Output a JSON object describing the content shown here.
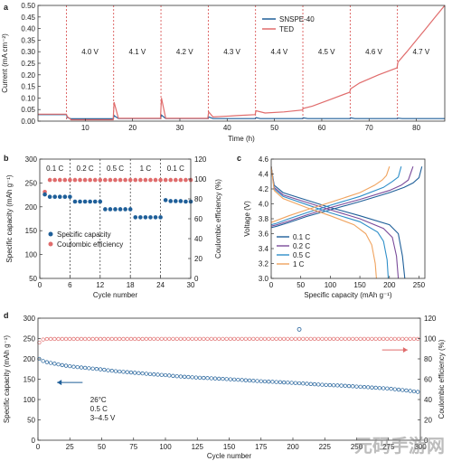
{
  "figure": {
    "watermark": "元码手游网"
  },
  "chart_data": [
    {
      "panel": "a",
      "type": "line",
      "xlabel": "Time (h)",
      "ylabel": "Current (mA cm⁻²)",
      "xlim": [
        0,
        86
      ],
      "ylim": [
        0.0,
        0.5
      ],
      "xticks": [
        "10",
        "20",
        "30",
        "40",
        "50",
        "60",
        "70",
        "80"
      ],
      "yticks": [
        "0.00",
        "0.05",
        "0.10",
        "0.15",
        "0.20",
        "0.25",
        "0.30",
        "0.35",
        "0.40",
        "0.45",
        "0.50"
      ],
      "voltage_steps": [
        "4.0 V",
        "4.1 V",
        "4.2 V",
        "4.3 V",
        "4.4 V",
        "4.5 V",
        "4.6 V",
        "4.7 V"
      ],
      "step_boundaries_h": [
        6,
        16,
        26,
        36,
        46,
        56,
        66,
        76
      ],
      "legend_position": "top-right",
      "series": [
        {
          "name": "SNSPE-40",
          "color": "#1f5f99",
          "x": [
            0,
            6,
            6.2,
            7,
            15.9,
            16.1,
            17,
            25.9,
            26.1,
            27,
            35.9,
            36.1,
            37,
            45.9,
            46.1,
            47,
            55.9,
            56.1,
            57,
            65.9,
            66.1,
            67,
            75.9,
            76.1,
            77,
            86
          ],
          "y": [
            0.028,
            0.028,
            0.016,
            0.01,
            0.01,
            0.024,
            0.011,
            0.011,
            0.026,
            0.011,
            0.011,
            0.018,
            0.011,
            0.011,
            0.015,
            0.011,
            0.011,
            0.014,
            0.011,
            0.011,
            0.014,
            0.011,
            0.011,
            0.013,
            0.011,
            0.011
          ]
        },
        {
          "name": "TED",
          "color": "#e06c6c",
          "x": [
            0,
            6,
            6.2,
            7,
            15.9,
            16.1,
            17,
            25.9,
            26.1,
            27,
            35.9,
            36.1,
            37,
            42,
            45.9,
            46.1,
            48,
            52,
            55.9,
            56.1,
            58,
            62,
            65.9,
            66.1,
            68,
            72,
            75.9,
            76.1,
            78,
            80,
            82,
            84,
            86
          ],
          "y": [
            0.03,
            0.03,
            0.02,
            0.006,
            0.006,
            0.082,
            0.012,
            0.012,
            0.1,
            0.012,
            0.012,
            0.04,
            0.018,
            0.024,
            0.028,
            0.045,
            0.035,
            0.04,
            0.048,
            0.055,
            0.065,
            0.095,
            0.125,
            0.14,
            0.165,
            0.2,
            0.23,
            0.255,
            0.3,
            0.35,
            0.4,
            0.45,
            0.5
          ]
        }
      ]
    },
    {
      "panel": "b",
      "type": "scatter",
      "xlabel": "Cycle number",
      "ylabel": "Specific capacity (mAh g⁻¹)",
      "y2label": "Coulombic efficiency (%)",
      "xlim": [
        0,
        30
      ],
      "ylim": [
        50,
        300
      ],
      "y2lim": [
        0,
        120
      ],
      "xticks": [
        "0",
        "6",
        "12",
        "18",
        "24",
        "30"
      ],
      "yticks": [
        "50",
        "100",
        "150",
        "200",
        "250",
        "300"
      ],
      "y2ticks": [
        "0",
        "20",
        "40",
        "60",
        "80",
        "100",
        "120"
      ],
      "rate_labels": [
        "0.1 C",
        "0.2 C",
        "0.5 C",
        "1 C",
        "0.1 C"
      ],
      "legend_position": "bottom-left",
      "series": [
        {
          "name": "Specific capacity",
          "color": "#1f5f99",
          "axis": "left",
          "x": [
            1,
            2,
            3,
            4,
            5,
            6,
            7,
            8,
            9,
            10,
            11,
            12,
            13,
            14,
            15,
            16,
            17,
            18,
            19,
            20,
            21,
            22,
            23,
            24,
            25,
            26,
            27,
            28,
            29,
            30
          ],
          "y": [
            226,
            221,
            221,
            221,
            221,
            221,
            211,
            211,
            211,
            211,
            211,
            211,
            195,
            195,
            195,
            195,
            195,
            195,
            178,
            178,
            178,
            178,
            178,
            178,
            214,
            212,
            212,
            212,
            211,
            211
          ]
        },
        {
          "name": "Coulombic efficiency",
          "color": "#e06c6c",
          "axis": "right",
          "x": [
            1,
            2,
            3,
            4,
            5,
            6,
            7,
            8,
            9,
            10,
            11,
            12,
            13,
            14,
            15,
            16,
            17,
            18,
            19,
            20,
            21,
            22,
            23,
            24,
            25,
            26,
            27,
            28,
            29,
            30
          ],
          "y": [
            87,
            99,
            99,
            99,
            99,
            99,
            99,
            99,
            99,
            99,
            99,
            99,
            99,
            99,
            99,
            99,
            99,
            99,
            99,
            99,
            99,
            99,
            99,
            99,
            99,
            99,
            99,
            99,
            99,
            99
          ]
        }
      ]
    },
    {
      "panel": "c",
      "type": "line",
      "xlabel": "Specific capacity (mAh g⁻¹)",
      "ylabel": "Voltage (V)",
      "xlim": [
        0,
        260
      ],
      "ylim": [
        3.0,
        4.6
      ],
      "xticks": [
        "0",
        "50",
        "100",
        "150",
        "200",
        "250"
      ],
      "yticks": [
        "3.0",
        "3.2",
        "3.4",
        "3.6",
        "3.8",
        "4.0",
        "4.2",
        "4.4",
        "4.6"
      ],
      "legend_position": "bottom-left",
      "series": [
        {
          "name": "0.1 C",
          "color": "#1f5f99",
          "charge": {
            "x": [
              0,
              10,
              30,
              60,
              100,
              150,
              200,
              225,
              240,
              250,
              255
            ],
            "y": [
              3.68,
              3.7,
              3.75,
              3.83,
              3.92,
              4.03,
              4.15,
              4.22,
              4.28,
              4.35,
              4.5
            ]
          },
          "discharge": {
            "x": [
              0,
              5,
              20,
              60,
              100,
              150,
              200,
              215,
              222,
              226
            ],
            "y": [
              4.5,
              4.25,
              4.15,
              4.05,
              3.95,
              3.84,
              3.72,
              3.6,
              3.3,
              3.0
            ]
          }
        },
        {
          "name": "0.2 C",
          "color": "#7a4b9a",
          "charge": {
            "x": [
              0,
              10,
              30,
              60,
              100,
              150,
              200,
              220,
              232,
              240
            ],
            "y": [
              3.7,
              3.72,
              3.77,
              3.85,
              3.95,
              4.06,
              4.18,
              4.25,
              4.32,
              4.5
            ]
          },
          "discharge": {
            "x": [
              0,
              5,
              20,
              60,
              100,
              150,
              190,
              205,
              212,
              215
            ],
            "y": [
              4.5,
              4.22,
              4.12,
              4.02,
              3.92,
              3.8,
              3.67,
              3.55,
              3.3,
              3.0
            ]
          }
        },
        {
          "name": "0.5 C",
          "color": "#2f8fc9",
          "charge": {
            "x": [
              0,
              10,
              30,
              60,
              100,
              150,
              190,
              205,
              215,
              220
            ],
            "y": [
              3.72,
              3.74,
              3.8,
              3.88,
              3.98,
              4.1,
              4.22,
              4.3,
              4.36,
              4.5
            ]
          },
          "discharge": {
            "x": [
              0,
              5,
              20,
              60,
              100,
              150,
              180,
              190,
              196,
              198
            ],
            "y": [
              4.5,
              4.2,
              4.1,
              3.99,
              3.88,
              3.76,
              3.62,
              3.5,
              3.25,
              3.0
            ]
          }
        },
        {
          "name": "1 C",
          "color": "#f0a35e",
          "charge": {
            "x": [
              0,
              10,
              30,
              60,
              100,
              150,
              175,
              188,
              195,
              200
            ],
            "y": [
              3.75,
              3.78,
              3.84,
              3.92,
              4.02,
              4.15,
              4.25,
              4.32,
              4.38,
              4.5
            ]
          },
          "discharge": {
            "x": [
              0,
              5,
              20,
              60,
              100,
              140,
              160,
              170,
              176,
              178
            ],
            "y": [
              4.5,
              4.18,
              4.07,
              3.95,
              3.84,
              3.72,
              3.6,
              3.45,
              3.2,
              3.0
            ]
          }
        }
      ]
    },
    {
      "panel": "d",
      "type": "scatter",
      "xlabel": "Cycle number",
      "ylabel": "Specific capacity (mAh g⁻¹)",
      "y2label": "Coulombic efficiency (%)",
      "xlim": [
        0,
        300
      ],
      "ylim": [
        0,
        300
      ],
      "y2lim": [
        0,
        120
      ],
      "xticks": [
        "0",
        "25",
        "50",
        "75",
        "100",
        "125",
        "150",
        "175",
        "200",
        "225",
        "250",
        "275",
        "300"
      ],
      "yticks": [
        "0",
        "50",
        "100",
        "150",
        "200",
        "250",
        "300"
      ],
      "y2ticks": [
        "0",
        "20",
        "40",
        "60",
        "80",
        "100",
        "120"
      ],
      "conditions": [
        "26°C",
        "0.5 C",
        "3–4.5 V"
      ],
      "series": [
        {
          "name": "Specific capacity",
          "color": "#1f5f99",
          "axis": "left",
          "x": [
            1,
            5,
            10,
            20,
            30,
            40,
            50,
            60,
            75,
            90,
            100,
            110,
            125,
            150,
            175,
            200,
            225,
            240,
            250,
            260,
            275,
            290,
            300
          ],
          "y": [
            200,
            193,
            190,
            184,
            180,
            177,
            174,
            170,
            166,
            162,
            160,
            157,
            154,
            150,
            145,
            141,
            136,
            134,
            132,
            130,
            127,
            122,
            118
          ]
        },
        {
          "name": "Coulombic efficiency",
          "color": "#e06c6c",
          "axis": "right",
          "x": [
            1,
            2,
            5,
            10,
            25,
            50,
            75,
            100,
            125,
            150,
            175,
            200,
            203,
            205,
            210,
            225,
            250,
            275,
            300
          ],
          "y": [
            96,
            98,
            99.5,
            99.6,
            99.6,
            99.6,
            99.6,
            99.7,
            99.7,
            99.7,
            99.7,
            99.7,
            99.7,
            109,
            99.7,
            99.7,
            99.7,
            99.7,
            99.7
          ]
        }
      ]
    }
  ]
}
